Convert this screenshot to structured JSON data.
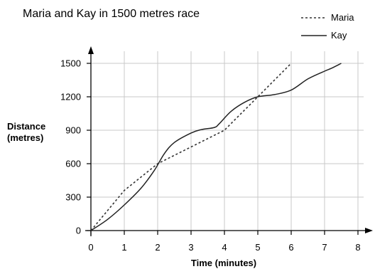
{
  "chart_data": {
    "type": "line",
    "title": "Maria and Kay in 1500 metres race",
    "xlabel": "Time (minutes)",
    "ylabel_lines": [
      "Distance",
      "(metres)"
    ],
    "xlim": [
      0,
      8
    ],
    "ylim": [
      0,
      1500
    ],
    "x_ticks": [
      0,
      1,
      2,
      3,
      4,
      5,
      6,
      7,
      8
    ],
    "y_ticks": [
      0,
      300,
      600,
      900,
      1200,
      1500
    ],
    "grid": true,
    "legend_position": "top-right",
    "series": [
      {
        "name": "Maria",
        "style": "dotted",
        "color": "#333333",
        "points": [
          [
            0,
            0
          ],
          [
            1,
            360
          ],
          [
            2,
            600
          ],
          [
            4,
            900
          ],
          [
            5,
            1200
          ],
          [
            6,
            1500
          ]
        ]
      },
      {
        "name": "Kay",
        "style": "solid",
        "color": "#222222",
        "points": [
          [
            0,
            0
          ],
          [
            0.5,
            100
          ],
          [
            1,
            230
          ],
          [
            1.5,
            380
          ],
          [
            1.9,
            540
          ],
          [
            2.2,
            690
          ],
          [
            2.5,
            790
          ],
          [
            3,
            875
          ],
          [
            3.3,
            905
          ],
          [
            3.7,
            925
          ],
          [
            3.85,
            960
          ],
          [
            4.2,
            1070
          ],
          [
            4.6,
            1150
          ],
          [
            5,
            1200
          ],
          [
            5.5,
            1220
          ],
          [
            6,
            1260
          ],
          [
            6.5,
            1360
          ],
          [
            7,
            1430
          ],
          [
            7.2,
            1455
          ],
          [
            7.5,
            1500
          ]
        ]
      }
    ]
  }
}
